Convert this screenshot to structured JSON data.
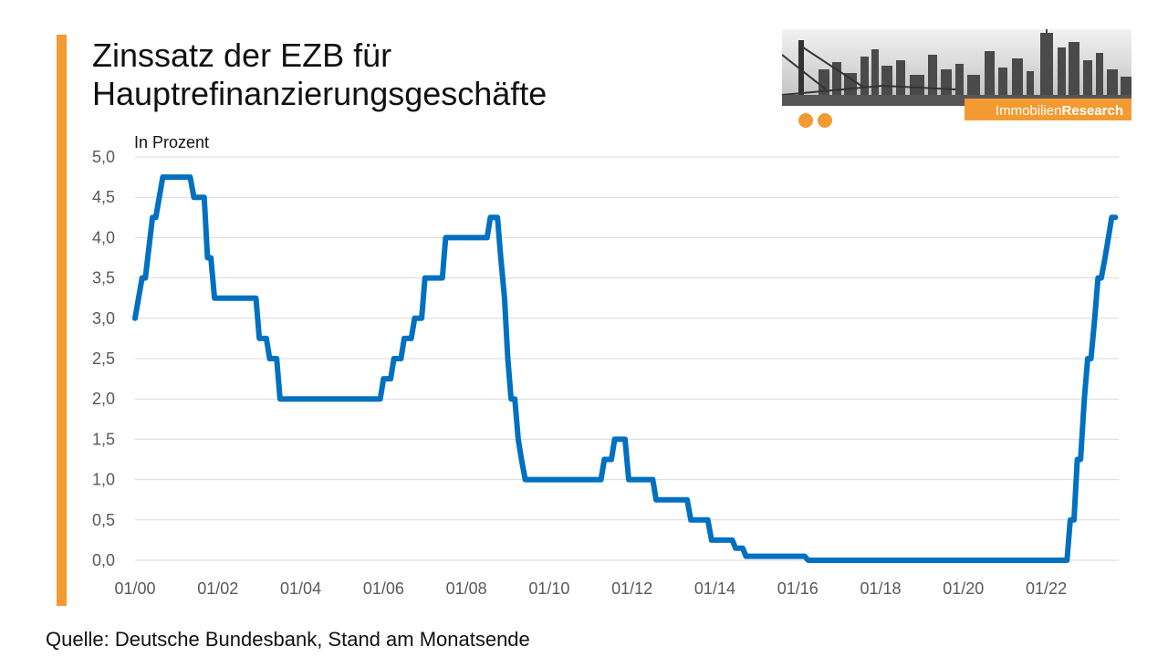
{
  "title": "Zinssatz der EZB für\nHauptrefinanzierungsgeschäfte",
  "source": "Quelle: Deutsche Bundesbank, Stand am Monatsende",
  "logo": {
    "text_light": "Immobilien",
    "text_bold": "Research"
  },
  "colors": {
    "accent": "#F39A33",
    "line": "#0070C0",
    "grid": "#D9D9D9",
    "axis_text": "#595959"
  },
  "chart_data": {
    "type": "line",
    "unit_label": "In Prozent",
    "ylim": [
      0,
      5
    ],
    "yticks": [
      "0,0",
      "0,5",
      "1,0",
      "1,5",
      "2,0",
      "2,5",
      "3,0",
      "3,5",
      "4,0",
      "4,5",
      "5,0"
    ],
    "xlim": [
      2000.0,
      2023.75
    ],
    "xticks": [
      "01/00",
      "01/02",
      "01/04",
      "01/06",
      "01/08",
      "01/10",
      "01/12",
      "01/14",
      "01/16",
      "01/18",
      "01/20",
      "01/22"
    ],
    "grid": true,
    "legend": "none",
    "series": [
      {
        "x": [
          2000.0,
          2000.17,
          2000.25,
          2000.42,
          2000.5,
          2000.67,
          2000.75,
          2000.83,
          2001.33,
          2001.42,
          2001.67,
          2001.75,
          2001.83,
          2001.92,
          2002.92,
          2003.0,
          2003.17,
          2003.25,
          2003.42,
          2003.5,
          2005.92,
          2006.0,
          2006.17,
          2006.25,
          2006.42,
          2006.5,
          2006.67,
          2006.75,
          2006.92,
          2007.0,
          2007.42,
          2007.5,
          2008.5,
          2008.58,
          2008.75,
          2008.83,
          2008.92,
          2009.0,
          2009.08,
          2009.17,
          2009.25,
          2009.33,
          2009.42,
          2011.25,
          2011.33,
          2011.5,
          2011.58,
          2011.83,
          2011.92,
          2012.5,
          2012.58,
          2013.33,
          2013.42,
          2013.83,
          2013.92,
          2014.42,
          2014.5,
          2014.67,
          2014.75,
          2016.17,
          2016.25,
          2022.5,
          2022.58,
          2022.67,
          2022.75,
          2022.83,
          2022.92,
          2023.0,
          2023.08,
          2023.17,
          2023.25,
          2023.33,
          2023.42,
          2023.5,
          2023.58,
          2023.67
        ],
        "values": [
          3.0,
          3.5,
          3.5,
          4.25,
          4.25,
          4.75,
          4.75,
          4.75,
          4.75,
          4.5,
          4.5,
          3.75,
          3.75,
          3.25,
          3.25,
          2.75,
          2.75,
          2.5,
          2.5,
          2.0,
          2.0,
          2.25,
          2.25,
          2.5,
          2.5,
          2.75,
          2.75,
          3.0,
          3.0,
          3.5,
          3.5,
          4.0,
          4.0,
          4.25,
          4.25,
          3.75,
          3.25,
          2.5,
          2.0,
          2.0,
          1.5,
          1.25,
          1.0,
          1.0,
          1.25,
          1.25,
          1.5,
          1.5,
          1.0,
          1.0,
          0.75,
          0.75,
          0.5,
          0.5,
          0.25,
          0.25,
          0.15,
          0.15,
          0.05,
          0.05,
          0.0,
          0.0,
          0.5,
          0.5,
          1.25,
          1.25,
          2.0,
          2.5,
          2.5,
          3.0,
          3.5,
          3.5,
          3.75,
          4.0,
          4.25,
          4.25
        ]
      }
    ]
  }
}
